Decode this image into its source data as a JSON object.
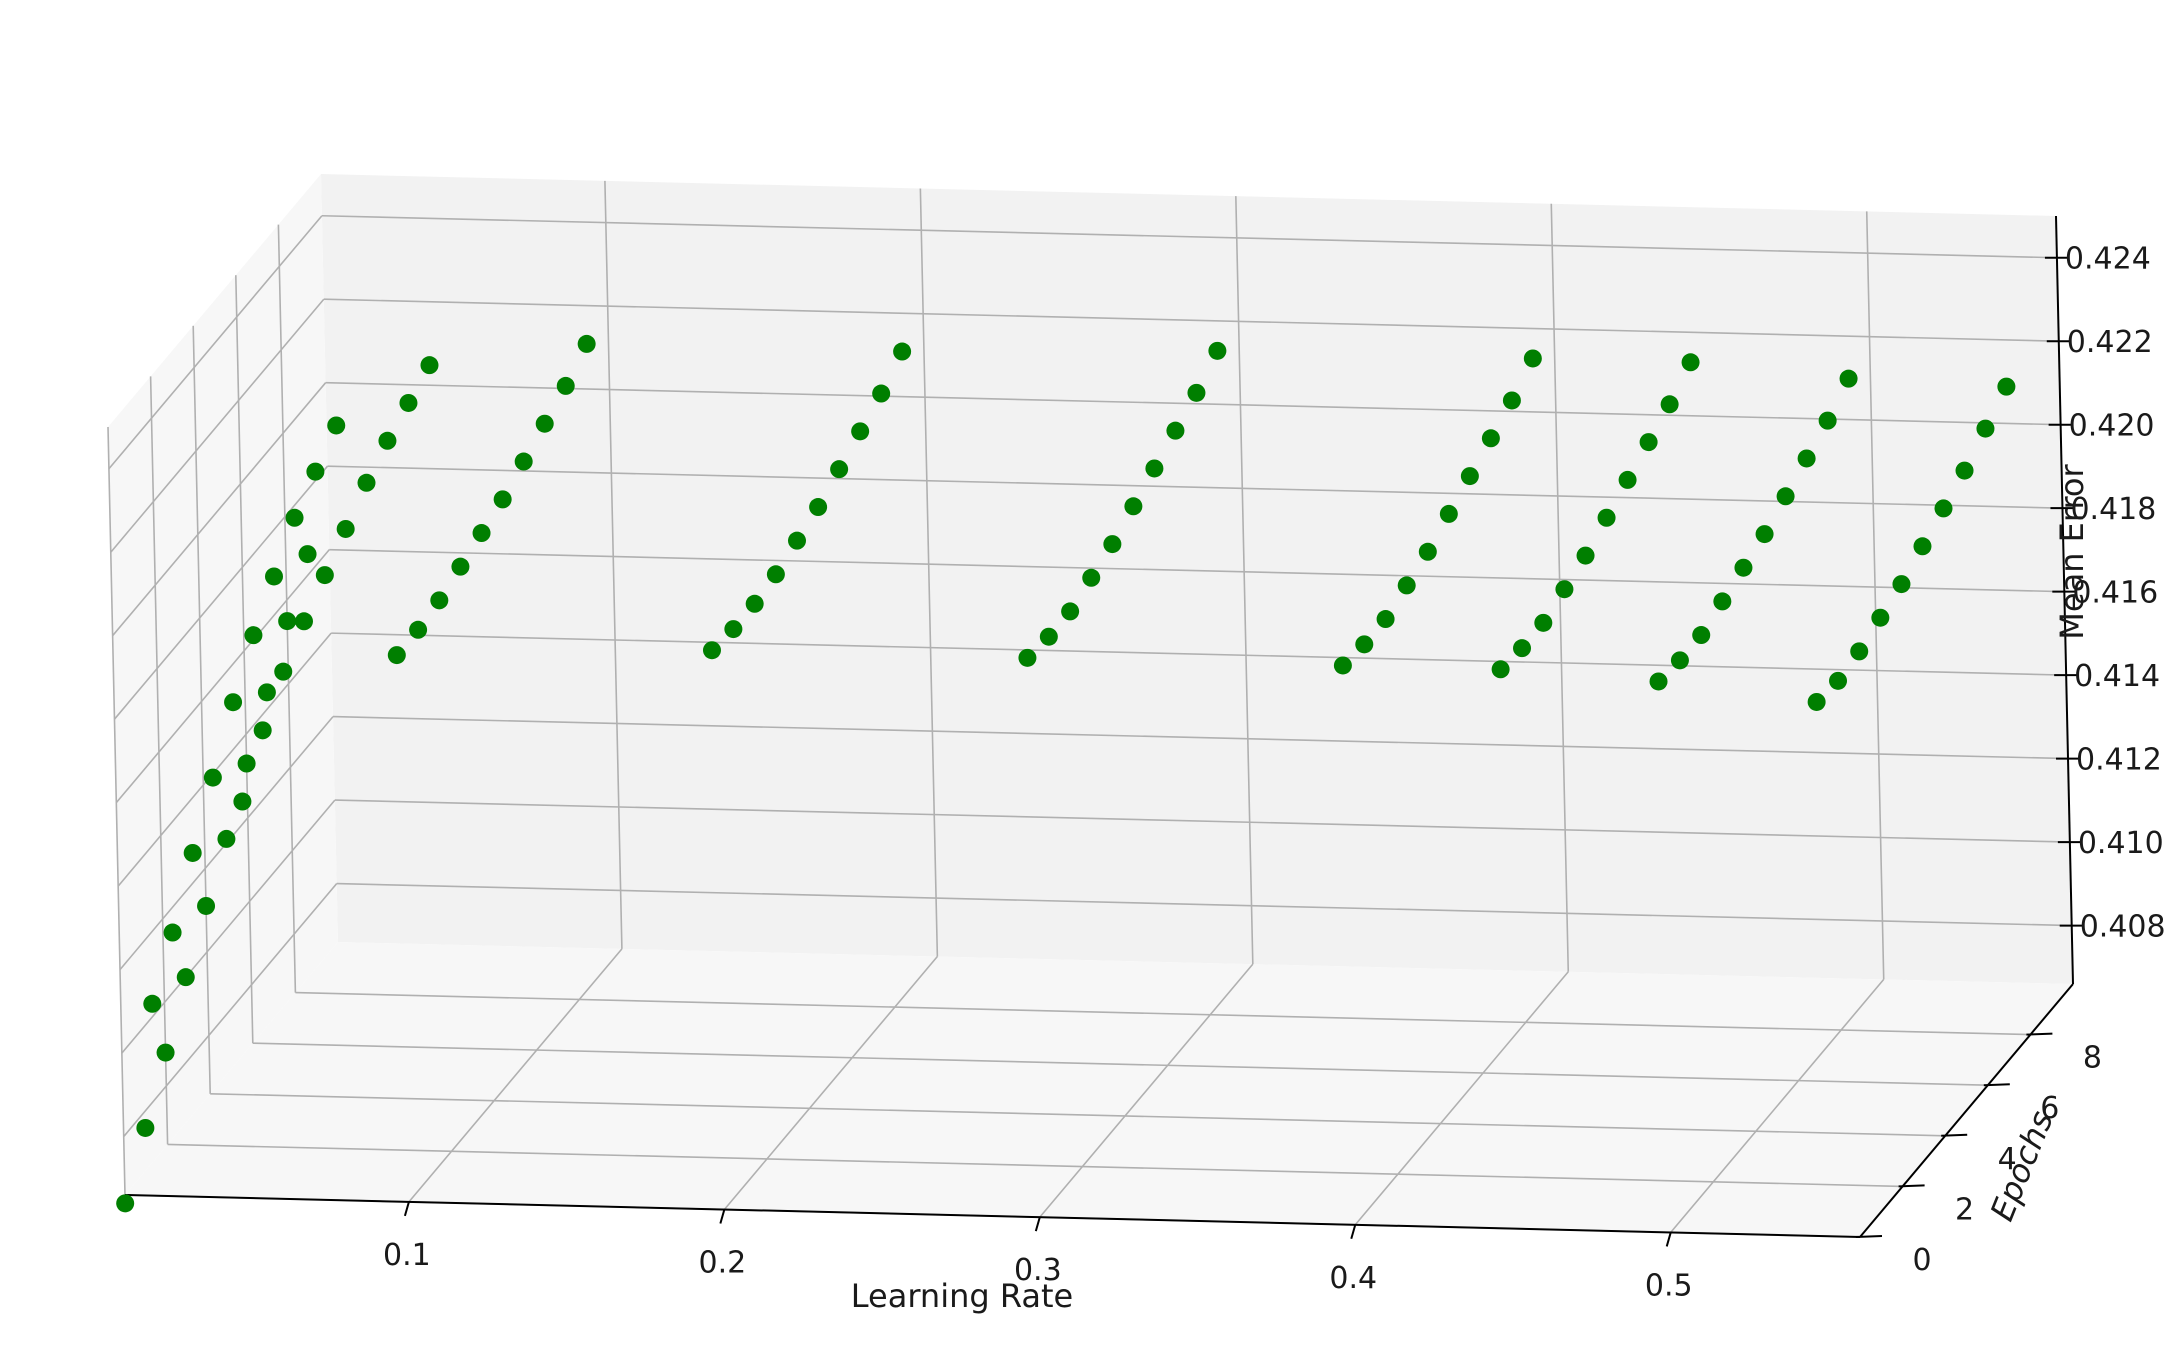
{
  "chart_data": {
    "type": "scatter",
    "projection": "3d",
    "title": "",
    "xlabel": "Learning Rate",
    "ylabel": "Epochs",
    "zlabel": "Mean Error",
    "x_ticks": [
      "0.1",
      "0.2",
      "0.3",
      "0.4",
      "0.5"
    ],
    "y_ticks": [
      "0",
      "2",
      "4",
      "6",
      "8"
    ],
    "z_ticks": [
      "0.408",
      "0.410",
      "0.412",
      "0.414",
      "0.416",
      "0.418",
      "0.420",
      "0.422",
      "0.424"
    ],
    "xlim": [
      0.01,
      0.56
    ],
    "ylim": [
      0,
      10
    ],
    "zlim": [
      0.4066,
      0.425
    ],
    "grid": true,
    "colors": {
      "marker": "#007f00",
      "pane_back": "#f2f2f2",
      "pane_side": "#f7f7f7",
      "grid": "#b0b0b0",
      "axis_line": "#000000"
    },
    "series": [
      {
        "learning_rate": 0.01,
        "epochs": [
          0,
          1,
          2,
          3,
          4,
          5,
          6,
          7,
          8,
          9
        ],
        "mean_error": [
          0.4064,
          0.4076,
          0.4088,
          0.41,
          0.4111,
          0.4121,
          0.4133,
          0.4144,
          0.4155,
          0.4165
        ]
      },
      {
        "learning_rate": 0.02,
        "epochs": [
          0,
          1,
          2,
          3,
          4,
          5,
          6,
          7,
          8,
          9
        ],
        "mean_error": [
          0.4112,
          0.4123,
          0.4136,
          0.4148,
          0.416,
          0.417,
          0.4178,
          0.4186,
          0.4191,
          0.4196
        ]
      },
      {
        "learning_rate": 0.05,
        "epochs": [
          0,
          1,
          2,
          3,
          4,
          5,
          6,
          7,
          8,
          9
        ],
        "mean_error": [
          0.4161,
          0.4172,
          0.418,
          0.4186,
          0.4191,
          0.4196,
          0.4201,
          0.4205,
          0.4208,
          0.4211
        ]
      },
      {
        "learning_rate": 0.1,
        "epochs": [
          0,
          1,
          2,
          3,
          4,
          5,
          6,
          7,
          8,
          9
        ],
        "mean_error": [
          0.4197,
          0.4197,
          0.4198,
          0.42,
          0.4202,
          0.4204,
          0.4207,
          0.421,
          0.4213,
          0.4217
        ]
      },
      {
        "learning_rate": 0.2,
        "epochs": [
          0,
          1,
          2,
          3,
          4,
          5,
          6,
          7,
          8,
          9
        ],
        "mean_error": [
          0.42,
          0.4199,
          0.4199,
          0.42,
          0.4202,
          0.4204,
          0.4207,
          0.421,
          0.4213,
          0.4217
        ]
      },
      {
        "learning_rate": 0.3,
        "epochs": [
          0,
          1,
          2,
          3,
          4,
          5,
          6,
          7,
          8,
          9
        ],
        "mean_error": [
          0.42,
          0.4199,
          0.4199,
          0.4201,
          0.4203,
          0.4206,
          0.4209,
          0.4212,
          0.4215,
          0.4219
        ]
      },
      {
        "learning_rate": 0.4,
        "epochs": [
          0,
          1,
          2,
          3,
          4,
          5,
          6,
          7,
          8,
          9
        ],
        "mean_error": [
          0.42,
          0.4199,
          0.4199,
          0.4201,
          0.4203,
          0.4206,
          0.4209,
          0.4212,
          0.4215,
          0.4219
        ]
      },
      {
        "learning_rate": 0.45,
        "epochs": [
          0,
          1,
          2,
          3,
          4,
          5,
          6,
          7,
          8,
          9
        ],
        "mean_error": [
          0.42,
          0.4199,
          0.4199,
          0.4201,
          0.4203,
          0.4206,
          0.4209,
          0.4212,
          0.4215,
          0.4219
        ]
      },
      {
        "learning_rate": 0.5,
        "epochs": [
          0,
          1,
          2,
          3,
          4,
          5,
          6,
          7,
          8,
          9
        ],
        "mean_error": [
          0.4198,
          0.4197,
          0.4197,
          0.4199,
          0.4201,
          0.4203,
          0.4206,
          0.4209,
          0.4212,
          0.4216
        ]
      },
      {
        "learning_rate": 0.55,
        "epochs": [
          0,
          1,
          2,
          3,
          4,
          5,
          6,
          7,
          8,
          9
        ],
        "mean_error": [
          0.4194,
          0.4193,
          0.4194,
          0.4196,
          0.4198,
          0.4201,
          0.4204,
          0.4207,
          0.4211,
          0.4215
        ]
      }
    ]
  }
}
